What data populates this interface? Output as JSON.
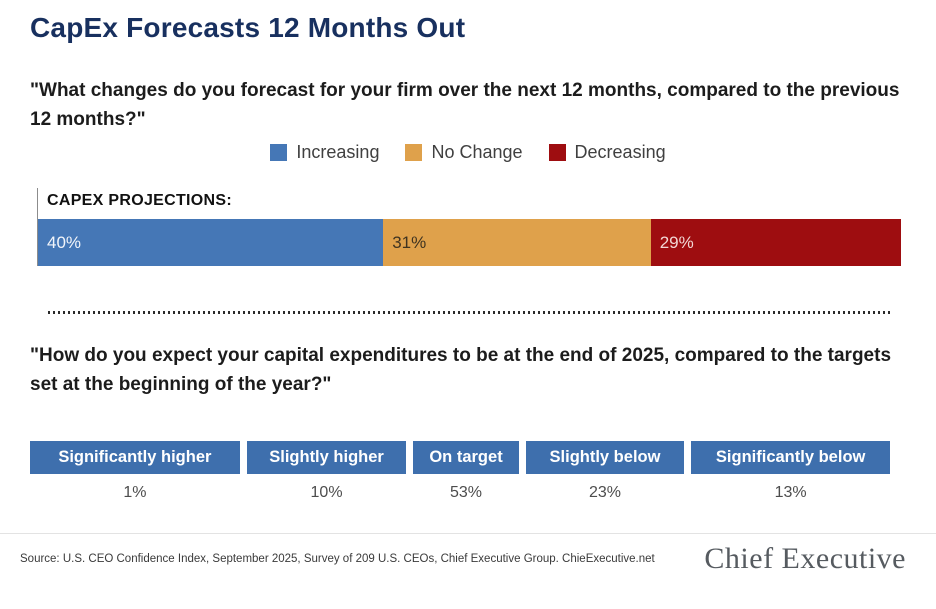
{
  "page": {
    "title": "CapEx Forecasts 12 Months Out",
    "question1": "\"What changes do you forecast for your firm over the next 12 months, compared to the previous 12 months?\"",
    "question2": "\"How do you expect your capital expenditures to be at the end of 2025, compared to the targets set at the beginning of the year?\"",
    "source": "Source: U.S. CEO Confidence Index, September 2025, Survey of 209 U.S. CEOs, Chief Executive Group. ChieExecutive.net",
    "logo_text": "Chief Executive"
  },
  "colors": {
    "title_navy": "#18305f",
    "table_header_blue": "#3e6fad",
    "increasing_blue": "#4577b6",
    "no_change_orange": "#dfa14b",
    "decreasing_red": "#9e0d10"
  },
  "chart_data": [
    {
      "type": "bar",
      "variant": "stacked-horizontal-100pct",
      "title": "CAPEX PROJECTIONS:",
      "legend_position": "top-center",
      "xlim": [
        0,
        100
      ],
      "series": [
        {
          "name": "Increasing",
          "value": 40,
          "label": "40%",
          "color": "#4577b6",
          "label_color": "#f2f5fa"
        },
        {
          "name": "No Change",
          "value": 31,
          "label": "31%",
          "color": "#dfa14b",
          "label_color": "#3f3320"
        },
        {
          "name": "Decreasing",
          "value": 29,
          "label": "29%",
          "color": "#9e0d10",
          "label_color": "#f2d7d5"
        }
      ]
    },
    {
      "type": "table",
      "columns": [
        "Significantly higher",
        "Slightly higher",
        "On target",
        "Slightly below",
        "Significantly below"
      ],
      "values": [
        "1%",
        "10%",
        "53%",
        "23%",
        "13%"
      ]
    }
  ]
}
